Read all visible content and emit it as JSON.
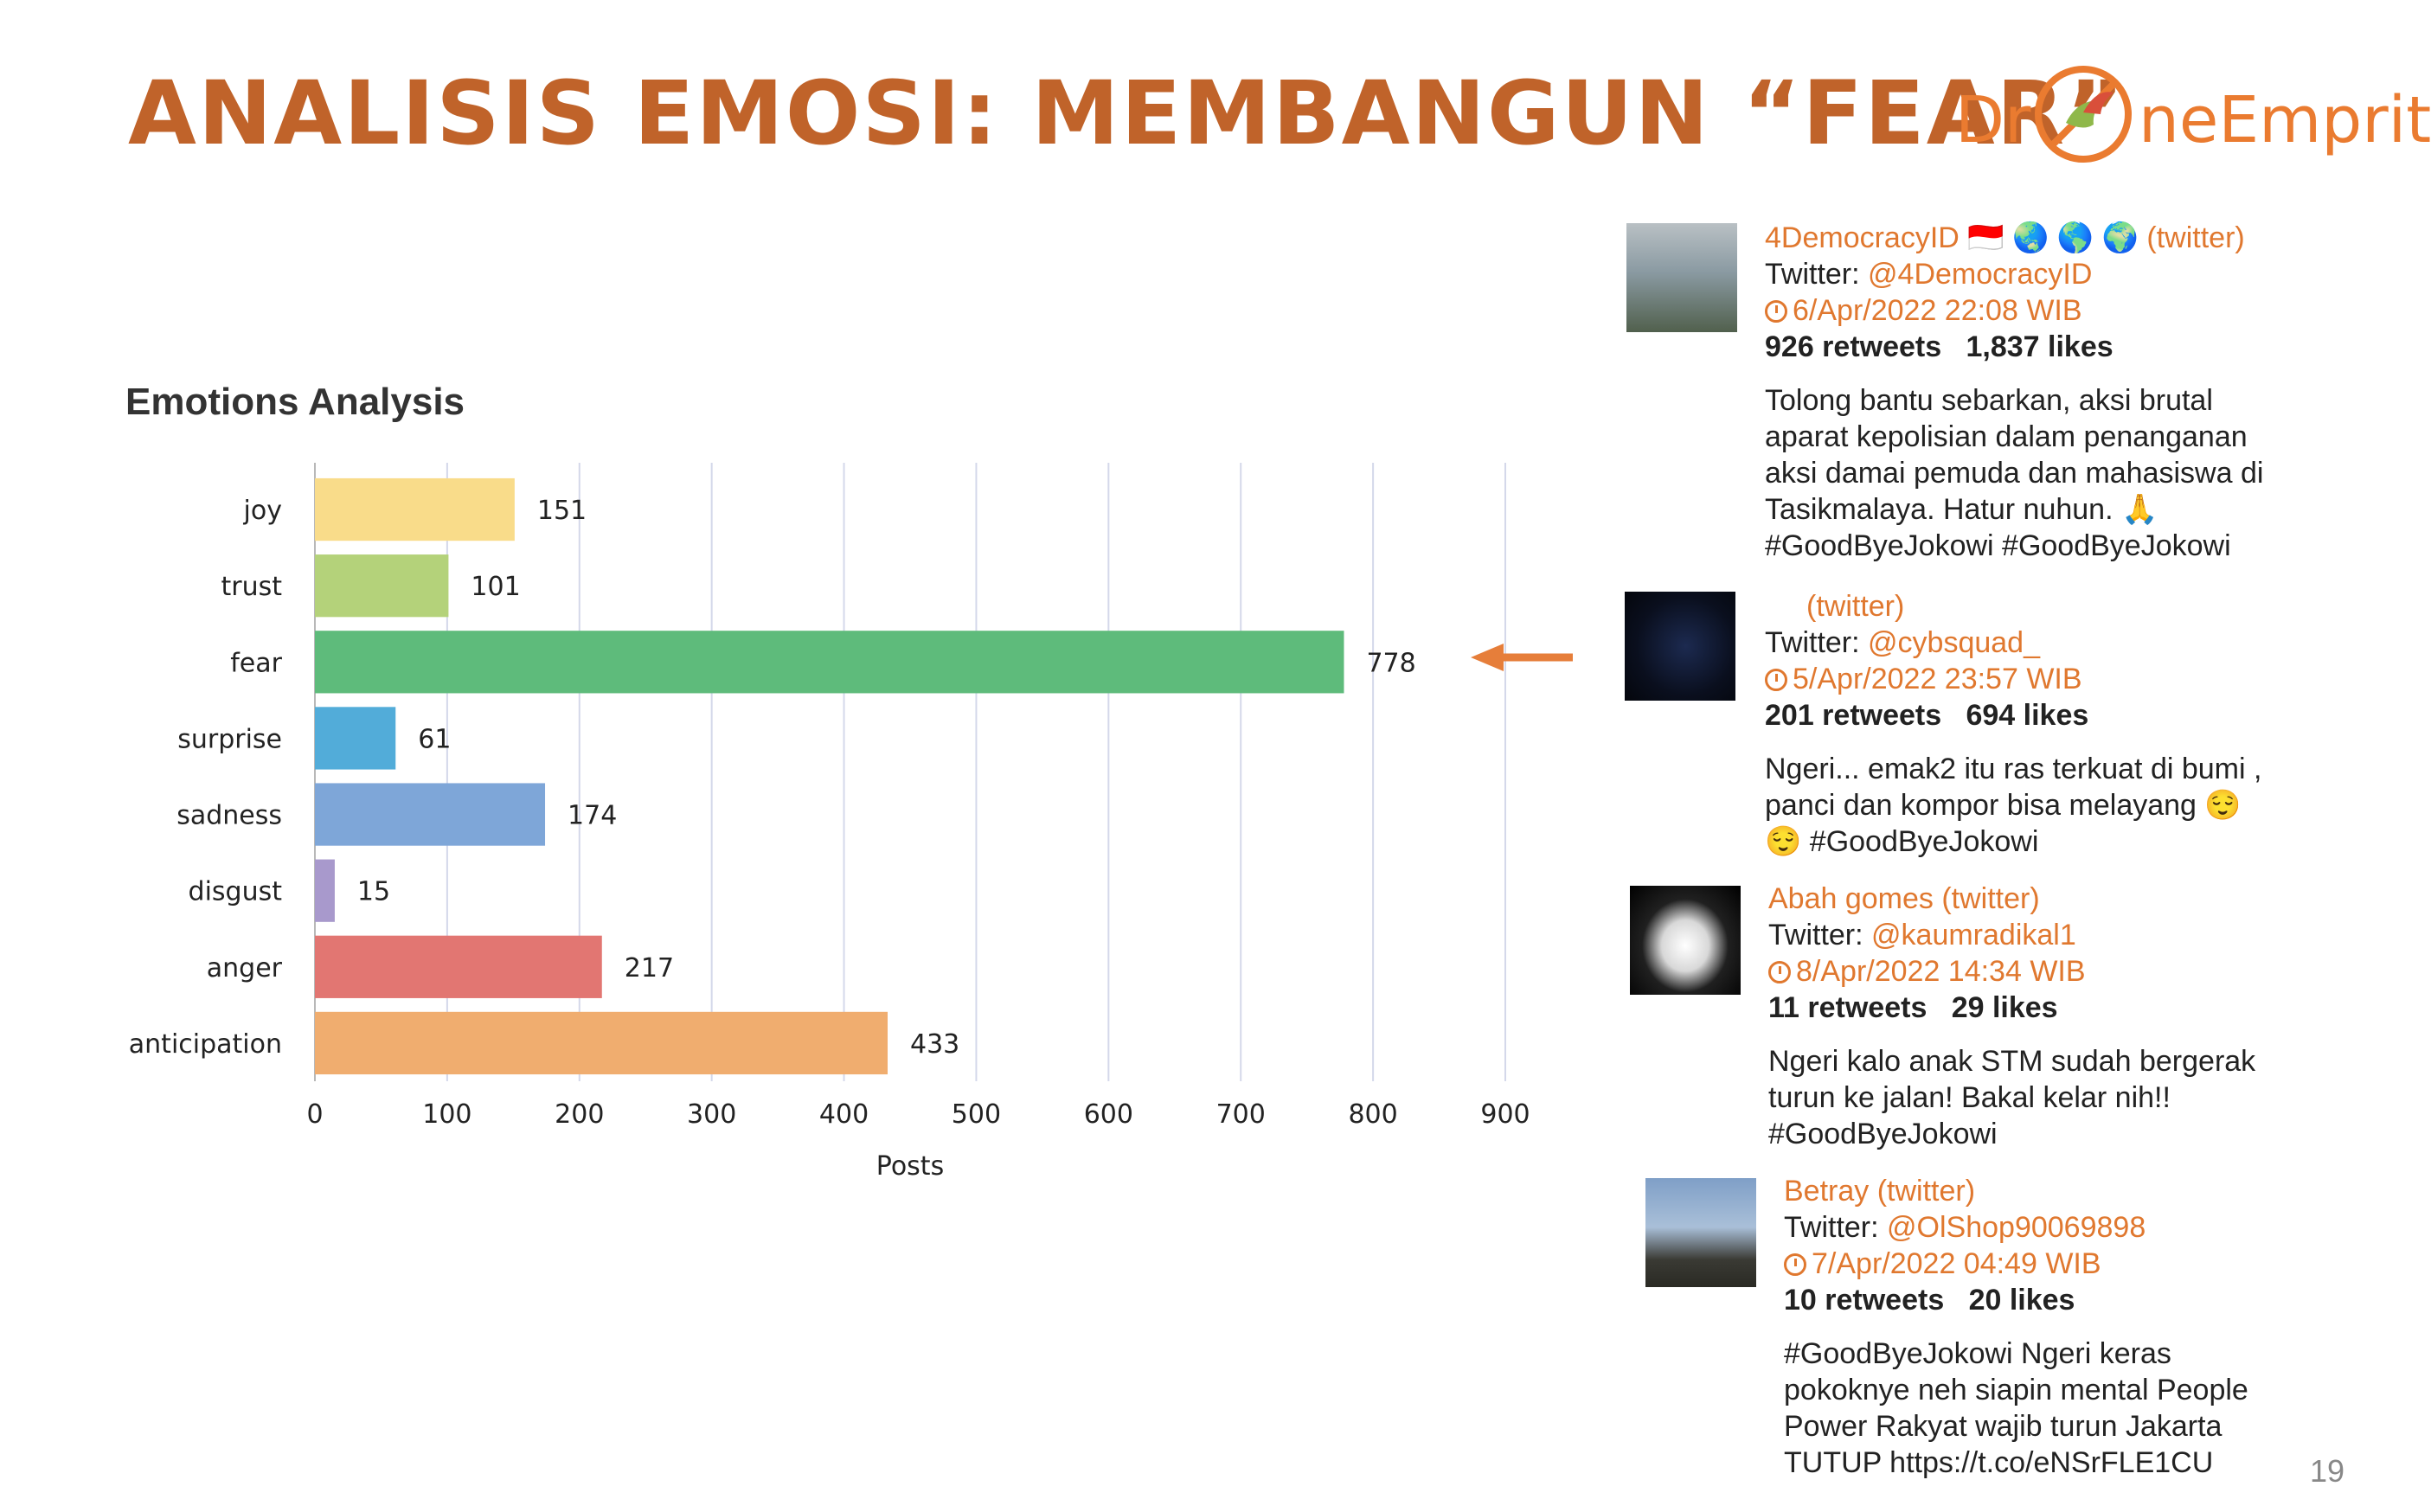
{
  "slide": {
    "title": "ANALISIS EMOSI: MEMBANGUN “FEAR”",
    "logo_left": "Dr",
    "logo_right": "neEmprit",
    "page_number": "19"
  },
  "chart_data": {
    "type": "bar",
    "orientation": "horizontal",
    "title": "Emotions Analysis",
    "xlabel": "Posts",
    "ylabel": "",
    "xlim": [
      0,
      900
    ],
    "ticks": [
      "0",
      "100",
      "200",
      "300",
      "400",
      "500",
      "600",
      "700",
      "800",
      "900"
    ],
    "categories": [
      "joy",
      "trust",
      "fear",
      "surprise",
      "sadness",
      "disgust",
      "anger",
      "anticipation"
    ],
    "values": [
      151,
      101,
      778,
      61,
      174,
      15,
      217,
      433
    ],
    "colors": [
      "#f9dc8a",
      "#b4d27a",
      "#5ebb7b",
      "#52acd9",
      "#7ea6d8",
      "#a899cc",
      "#e27672",
      "#f0ad6f"
    ],
    "grid": true
  },
  "tweets": [
    {
      "name": "4DemocracyID 🇮🇩 🌏 🌎 🌍 (twitter)",
      "handle_label": "Twitter: ",
      "handle": "@4DemocracyID",
      "time": "6/Apr/2022 22:08 WIB",
      "retweets": "926 retweets",
      "likes": "1,837 likes",
      "text": "Tolong bantu sebarkan, aksi brutal aparat kepolisian dalam penanganan aksi damai pemuda dan mahasiswa di Tasikmalaya. Hatur nuhun. 🙏 #GoodByeJokowi #GoodByeJokowi"
    },
    {
      "name": "(twitter)",
      "handle_label": "Twitter: ",
      "handle": "@cybsquad_",
      "time": "5/Apr/2022 23:57 WIB",
      "retweets": "201 retweets",
      "likes": "694 likes",
      "text": "Ngeri... emak2 itu ras terkuat di bumi , panci dan kompor bisa melayang 😌 😌 #GoodByeJokowi"
    },
    {
      "name": "Abah gomes (twitter)",
      "handle_label": "Twitter: ",
      "handle": "@kaumradikal1",
      "time": "8/Apr/2022 14:34 WIB",
      "retweets": "11 retweets",
      "likes": "29 likes",
      "text": "Ngeri kalo anak STM sudah bergerak turun ke jalan! Bakal kelar nih!! #GoodByeJokowi"
    },
    {
      "name": "Betray (twitter)",
      "handle_label": "Twitter: ",
      "handle": "@OlShop90069898",
      "time": "7/Apr/2022 04:49 WIB",
      "retweets": "10 retweets",
      "likes": "20 likes",
      "text": "#GoodByeJokowi Ngeri keras pokoknye neh siapin mental People Power Rakyat wajib turun Jakarta TUTUP https://t.co/eNSrFLE1CU"
    }
  ],
  "colors": {
    "accent": "#c0632a",
    "logo": "#ea7b30",
    "link": "#e0782f",
    "arrow": "#e67e3a"
  }
}
